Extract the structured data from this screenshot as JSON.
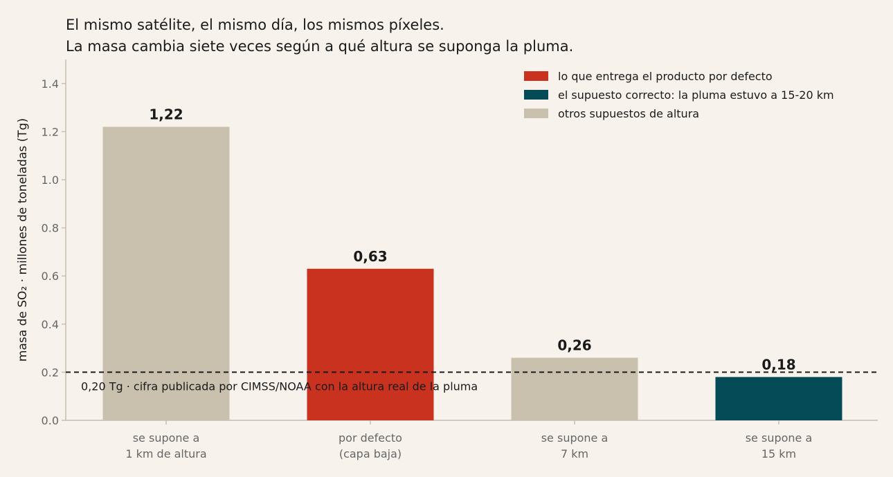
{
  "chart_data": {
    "type": "bar",
    "title_lines": [
      "El mismo satélite, el mismo día, los mismos píxeles.",
      "La masa cambia siete veces según a qué altura se suponga la pluma."
    ],
    "ylabel": "masa de SO₂ · millones de toneladas (Tg)",
    "xlabel": "",
    "ylim": [
      0,
      1.5
    ],
    "yticks": [
      "0.0",
      "0.2",
      "0.4",
      "0.6",
      "0.8",
      "1.0",
      "1.2",
      "1.4"
    ],
    "ytick_values": [
      0,
      0.2,
      0.4,
      0.6,
      0.8,
      1.0,
      1.2,
      1.4
    ],
    "categories": [
      [
        "se supone a",
        "1 km de altura"
      ],
      [
        "por defecto",
        "(capa baja)"
      ],
      [
        "se supone a",
        "7 km"
      ],
      [
        "se supone a",
        "15 km"
      ]
    ],
    "values": [
      1.22,
      0.63,
      0.26,
      0.18
    ],
    "value_labels": [
      "1,22",
      "0,63",
      "0,26",
      "0,18"
    ],
    "bar_groups": [
      "other",
      "default",
      "other",
      "correct"
    ],
    "colors": {
      "default": "#c8321e",
      "correct": "#044b57",
      "other": "#c9c1ae"
    },
    "legend": {
      "placement": "top-right",
      "entries": [
        {
          "group": "default",
          "label": "lo que entrega el producto por defecto"
        },
        {
          "group": "correct",
          "label": "el supuesto correcto: la pluma estuvo a 15-20 km"
        },
        {
          "group": "other",
          "label": "otros supuestos de altura"
        }
      ]
    },
    "reference_line": {
      "value": 0.2,
      "style": "dashed",
      "label": "0,20 Tg · cifra publicada por CIMSS/NOAA con la altura real de la pluma"
    },
    "grid": false
  }
}
